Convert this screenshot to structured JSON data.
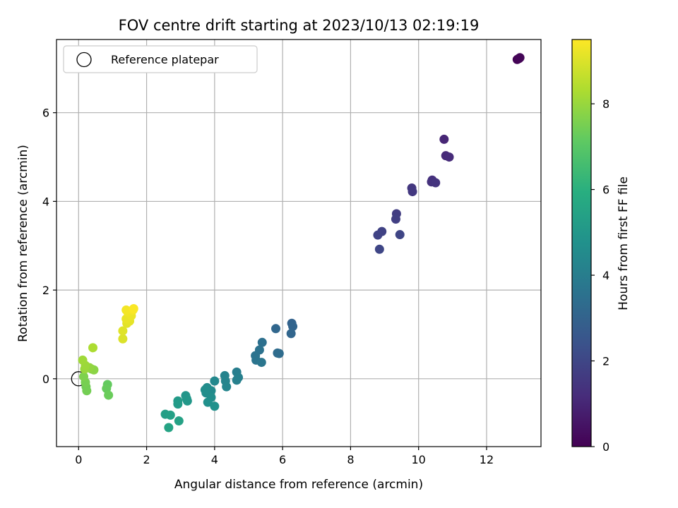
{
  "chart_data": {
    "type": "scatter",
    "title": "FOV centre drift starting at 2023/10/13 02:19:19",
    "xlabel": "Angular distance from reference (arcmin)",
    "ylabel": "Rotation from reference (arcmin)",
    "xlim": [
      -0.65,
      13.6
    ],
    "ylim": [
      -1.53,
      7.65
    ],
    "xticks": [
      0,
      2,
      4,
      6,
      8,
      10,
      12
    ],
    "yticks": [
      0,
      2,
      4,
      6
    ],
    "grid": true,
    "legend": {
      "location": "top-left",
      "entries": [
        "Reference platepar"
      ]
    },
    "reference_point": {
      "x": 0,
      "y": 0,
      "label": "Reference platepar"
    },
    "colorbar": {
      "label": "Hours from first FF file",
      "colormap": "viridis",
      "range": [
        0,
        9.5
      ],
      "ticks": [
        0,
        2,
        4,
        6,
        8
      ]
    },
    "points": [
      {
        "x": 12.95,
        "y": 7.22,
        "c": 0.0
      },
      {
        "x": 12.9,
        "y": 7.2,
        "c": 0.05
      },
      {
        "x": 12.98,
        "y": 7.24,
        "c": 0.1
      },
      {
        "x": 10.75,
        "y": 5.4,
        "c": 1.0
      },
      {
        "x": 10.8,
        "y": 5.03,
        "c": 1.1
      },
      {
        "x": 10.9,
        "y": 5.0,
        "c": 1.15
      },
      {
        "x": 10.4,
        "y": 4.48,
        "c": 1.3
      },
      {
        "x": 10.38,
        "y": 4.44,
        "c": 1.35
      },
      {
        "x": 10.5,
        "y": 4.42,
        "c": 1.4
      },
      {
        "x": 9.8,
        "y": 4.3,
        "c": 1.5
      },
      {
        "x": 9.82,
        "y": 4.22,
        "c": 1.55
      },
      {
        "x": 9.35,
        "y": 3.72,
        "c": 1.7
      },
      {
        "x": 9.33,
        "y": 3.6,
        "c": 1.75
      },
      {
        "x": 8.92,
        "y": 3.32,
        "c": 1.85
      },
      {
        "x": 8.8,
        "y": 3.24,
        "c": 1.9
      },
      {
        "x": 9.45,
        "y": 3.25,
        "c": 1.95
      },
      {
        "x": 8.85,
        "y": 2.92,
        "c": 2.0
      },
      {
        "x": 6.27,
        "y": 1.25,
        "c": 3.0
      },
      {
        "x": 6.3,
        "y": 1.18,
        "c": 3.05
      },
      {
        "x": 6.25,
        "y": 1.02,
        "c": 3.1
      },
      {
        "x": 5.8,
        "y": 1.13,
        "c": 3.15
      },
      {
        "x": 5.85,
        "y": 0.58,
        "c": 3.3
      },
      {
        "x": 5.9,
        "y": 0.57,
        "c": 3.35
      },
      {
        "x": 5.4,
        "y": 0.82,
        "c": 3.5
      },
      {
        "x": 5.32,
        "y": 0.65,
        "c": 3.55
      },
      {
        "x": 5.2,
        "y": 0.52,
        "c": 3.6
      },
      {
        "x": 5.22,
        "y": 0.42,
        "c": 3.65
      },
      {
        "x": 5.38,
        "y": 0.37,
        "c": 3.7
      },
      {
        "x": 4.65,
        "y": 0.15,
        "c": 4.0
      },
      {
        "x": 4.7,
        "y": 0.03,
        "c": 4.05
      },
      {
        "x": 4.65,
        "y": -0.03,
        "c": 4.1
      },
      {
        "x": 4.3,
        "y": 0.07,
        "c": 4.2
      },
      {
        "x": 4.32,
        "y": -0.05,
        "c": 4.25
      },
      {
        "x": 4.35,
        "y": -0.18,
        "c": 4.3
      },
      {
        "x": 4.0,
        "y": -0.05,
        "c": 4.4
      },
      {
        "x": 3.9,
        "y": -0.27,
        "c": 4.5
      },
      {
        "x": 3.78,
        "y": -0.2,
        "c": 4.55
      },
      {
        "x": 3.75,
        "y": -0.32,
        "c": 4.6
      },
      {
        "x": 3.72,
        "y": -0.25,
        "c": 4.62
      },
      {
        "x": 3.9,
        "y": -0.42,
        "c": 4.65
      },
      {
        "x": 3.8,
        "y": -0.53,
        "c": 4.7
      },
      {
        "x": 4.0,
        "y": -0.62,
        "c": 4.75
      },
      {
        "x": 3.15,
        "y": -0.38,
        "c": 4.9
      },
      {
        "x": 3.18,
        "y": -0.45,
        "c": 4.95
      },
      {
        "x": 3.2,
        "y": -0.5,
        "c": 5.0
      },
      {
        "x": 2.92,
        "y": -0.5,
        "c": 5.1
      },
      {
        "x": 2.92,
        "y": -0.57,
        "c": 5.15
      },
      {
        "x": 2.55,
        "y": -0.8,
        "c": 5.3
      },
      {
        "x": 2.7,
        "y": -0.82,
        "c": 5.35
      },
      {
        "x": 2.95,
        "y": -0.95,
        "c": 5.4
      },
      {
        "x": 2.65,
        "y": -1.1,
        "c": 5.5
      },
      {
        "x": 0.85,
        "y": -0.13,
        "c": 7.2
      },
      {
        "x": 0.82,
        "y": -0.22,
        "c": 7.25
      },
      {
        "x": 0.88,
        "y": -0.37,
        "c": 7.3
      },
      {
        "x": 0.22,
        "y": -0.18,
        "c": 7.4
      },
      {
        "x": 0.24,
        "y": -0.27,
        "c": 7.45
      },
      {
        "x": 0.2,
        "y": -0.08,
        "c": 7.5
      },
      {
        "x": 0.15,
        "y": 0.05,
        "c": 7.6
      },
      {
        "x": 0.38,
        "y": 0.22,
        "c": 7.7
      },
      {
        "x": 0.45,
        "y": 0.2,
        "c": 7.8
      },
      {
        "x": 0.32,
        "y": 0.25,
        "c": 7.9
      },
      {
        "x": 0.18,
        "y": 0.22,
        "c": 8.0
      },
      {
        "x": 0.2,
        "y": 0.3,
        "c": 8.05
      },
      {
        "x": 0.12,
        "y": 0.42,
        "c": 8.1
      },
      {
        "x": 0.42,
        "y": 0.7,
        "c": 8.3
      },
      {
        "x": 1.3,
        "y": 0.9,
        "c": 9.0
      },
      {
        "x": 1.3,
        "y": 1.08,
        "c": 9.05
      },
      {
        "x": 1.42,
        "y": 1.25,
        "c": 9.1
      },
      {
        "x": 1.5,
        "y": 1.3,
        "c": 9.15
      },
      {
        "x": 1.4,
        "y": 1.35,
        "c": 9.2
      },
      {
        "x": 1.55,
        "y": 1.42,
        "c": 9.25
      },
      {
        "x": 1.45,
        "y": 1.5,
        "c": 9.3
      },
      {
        "x": 1.4,
        "y": 1.55,
        "c": 9.35
      },
      {
        "x": 1.6,
        "y": 1.55,
        "c": 9.4
      },
      {
        "x": 1.62,
        "y": 1.58,
        "c": 9.45
      }
    ]
  }
}
